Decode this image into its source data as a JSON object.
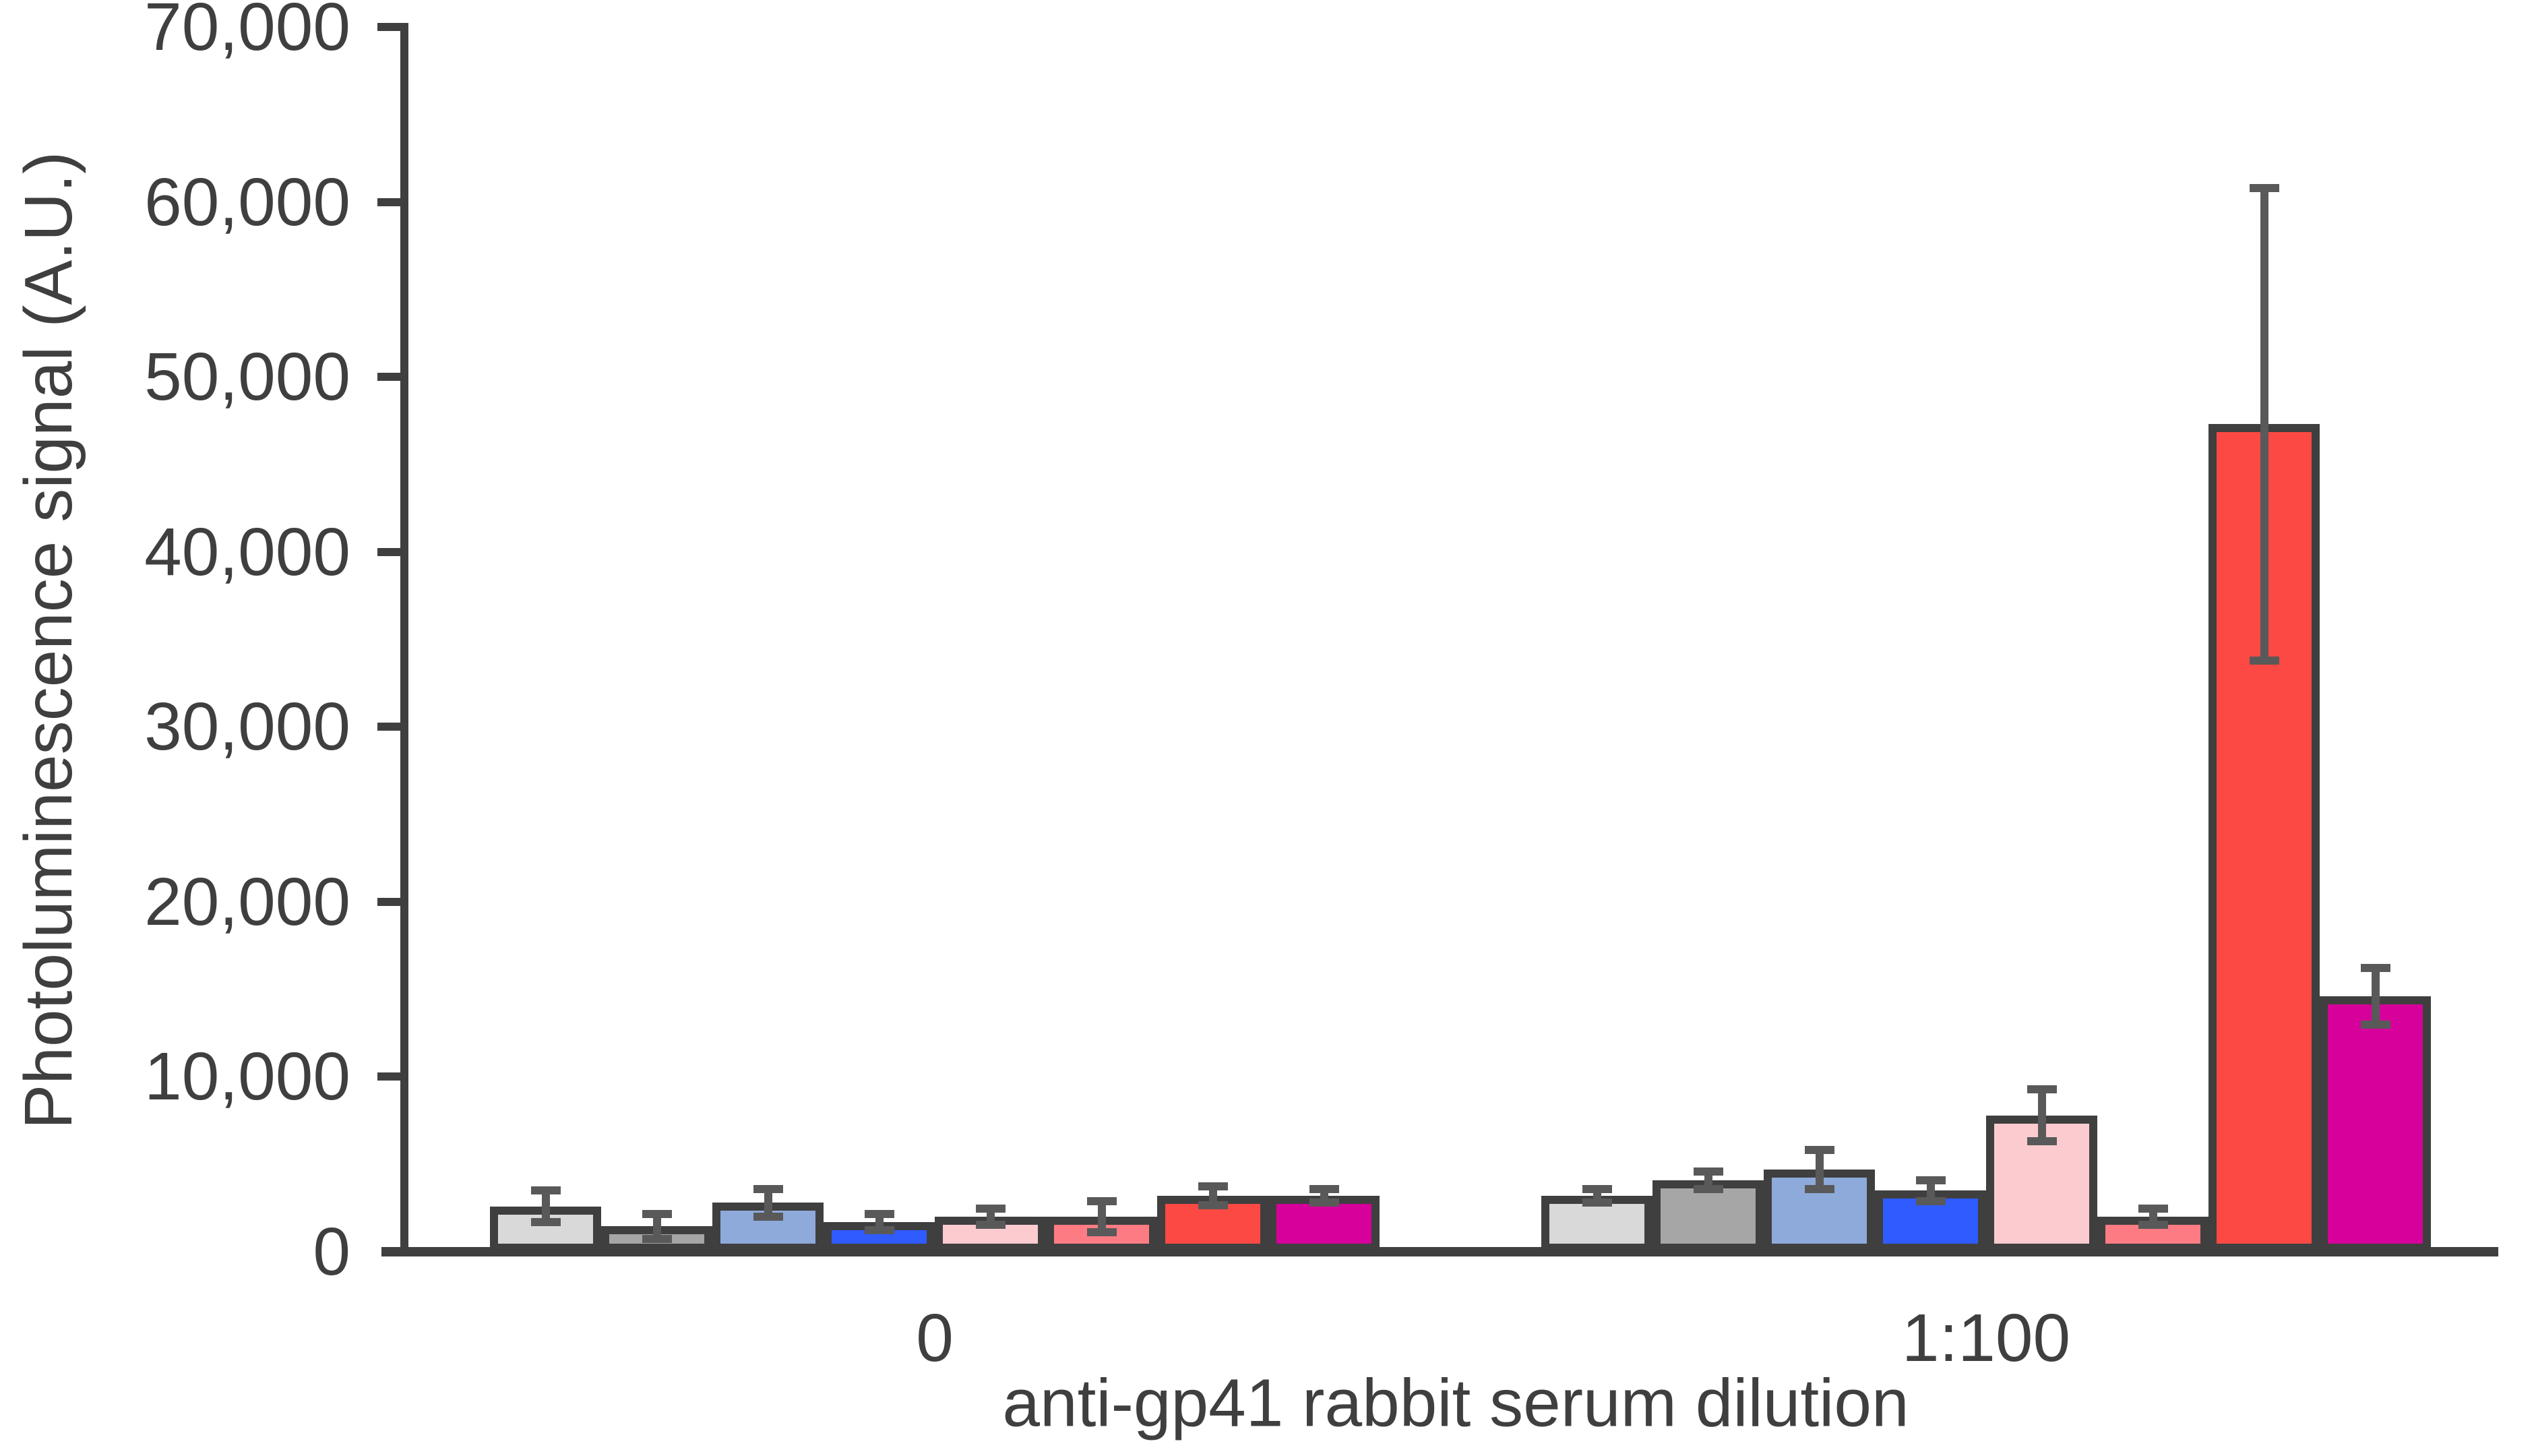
{
  "page": {
    "background": "#ffffff"
  },
  "chart_data": {
    "type": "bar",
    "title": "",
    "xlabel": "anti-gp41 rabbit serum dilution",
    "ylabel": "Photoluminescence signal (A.U.)",
    "categories": [
      "0",
      "1:100"
    ],
    "ylim": [
      0,
      70000
    ],
    "ytick_step": 10000,
    "yticks": [
      0,
      10000,
      20000,
      30000,
      40000,
      50000,
      60000,
      70000
    ],
    "ytick_labels": [
      "0",
      "10,000",
      "20,000",
      "30,000",
      "40,000",
      "50,000",
      "60,000",
      "70,000"
    ],
    "grid": false,
    "legend": "none",
    "error_bars": true,
    "series": [
      {
        "name": "light-gray",
        "color": "#d9d9d9",
        "values": [
          2600,
          3200
        ],
        "errors": [
          900,
          400
        ]
      },
      {
        "name": "gray",
        "color": "#a6a6a6",
        "values": [
          1450,
          4100
        ],
        "errors": [
          700,
          500
        ]
      },
      {
        "name": "light-blue",
        "color": "#8eaadb",
        "values": [
          2800,
          4700
        ],
        "errors": [
          800,
          1100
        ]
      },
      {
        "name": "blue",
        "color": "#2f5bff",
        "values": [
          1700,
          3500
        ],
        "errors": [
          450,
          600
        ]
      },
      {
        "name": "light-pink",
        "color": "#fccbd0",
        "values": [
          2000,
          7800
        ],
        "errors": [
          450,
          1500
        ]
      },
      {
        "name": "salmon-pink",
        "color": "#fd7c83",
        "values": [
          2000,
          2000
        ],
        "errors": [
          900,
          450
        ]
      },
      {
        "name": "red",
        "color": "#fc4943",
        "values": [
          3200,
          47300
        ],
        "errors": [
          550,
          13500
        ]
      },
      {
        "name": "magenta",
        "color": "#d6009a",
        "values": [
          3200,
          14600
        ],
        "errors": [
          400,
          1600
        ]
      }
    ],
    "style": {
      "axis_color": "#3f3f3f",
      "text_color": "#3f3f3f",
      "bar_outline_color": "#3f3f3f",
      "error_bar_color": "#595959"
    }
  }
}
